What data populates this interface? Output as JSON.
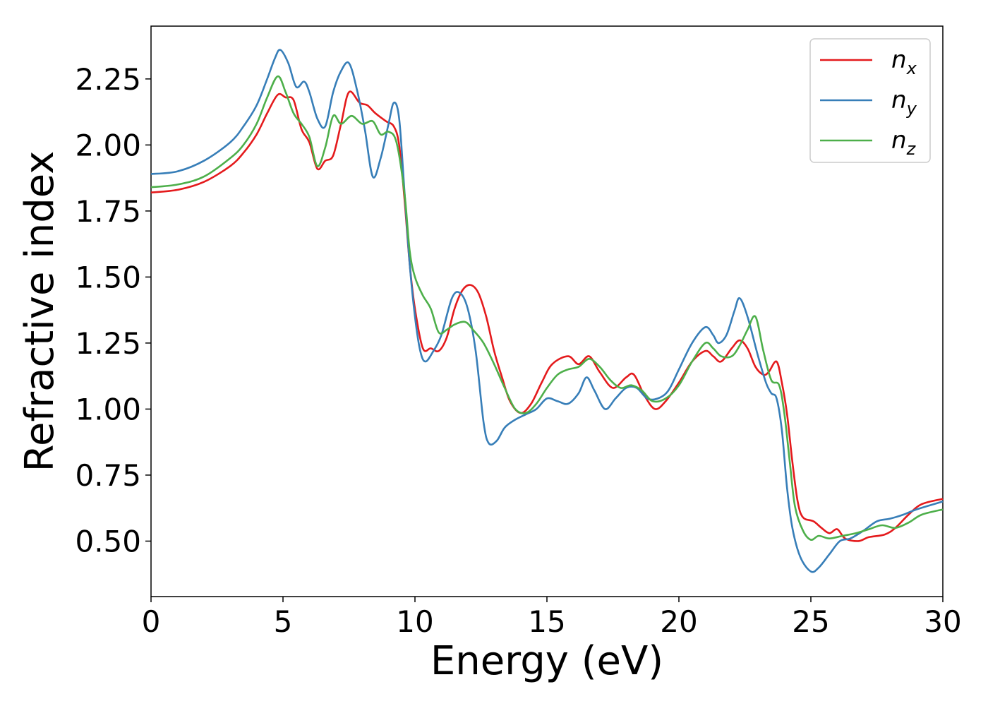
{
  "chart_data": {
    "type": "line",
    "title": "",
    "xlabel": "Energy (eV)",
    "ylabel": "Refractive index",
    "xlim": [
      0,
      30
    ],
    "ylim": [
      0.29,
      2.45
    ],
    "xticks": [
      0,
      5,
      10,
      15,
      20,
      25,
      30
    ],
    "yticks": [
      0.5,
      0.75,
      1.0,
      1.25,
      1.5,
      1.75,
      2.0,
      2.25
    ],
    "xtick_labels": [
      "0",
      "5",
      "10",
      "15",
      "20",
      "25",
      "30"
    ],
    "ytick_labels": [
      "0.50",
      "0.75",
      "1.00",
      "1.25",
      "1.50",
      "1.75",
      "2.00",
      "2.25"
    ],
    "grid": false,
    "legend_position": "top-right",
    "series": [
      {
        "name": "n",
        "subscript": "x",
        "color": "#e41a1c",
        "points": [
          [
            0,
            1.82
          ],
          [
            1,
            1.83
          ],
          [
            2,
            1.86
          ],
          [
            3,
            1.92
          ],
          [
            3.5,
            1.97
          ],
          [
            4,
            2.04
          ],
          [
            4.4,
            2.12
          ],
          [
            4.8,
            2.19
          ],
          [
            5.1,
            2.18
          ],
          [
            5.4,
            2.17
          ],
          [
            5.7,
            2.06
          ],
          [
            6.0,
            2.01
          ],
          [
            6.3,
            1.91
          ],
          [
            6.6,
            1.94
          ],
          [
            6.9,
            1.96
          ],
          [
            7.2,
            2.08
          ],
          [
            7.5,
            2.2
          ],
          [
            7.9,
            2.16
          ],
          [
            8.2,
            2.15
          ],
          [
            8.5,
            2.12
          ],
          [
            8.9,
            2.09
          ],
          [
            9.2,
            2.07
          ],
          [
            9.4,
            2.0
          ],
          [
            9.6,
            1.8
          ],
          [
            9.8,
            1.55
          ],
          [
            10.0,
            1.38
          ],
          [
            10.3,
            1.23
          ],
          [
            10.6,
            1.23
          ],
          [
            10.9,
            1.22
          ],
          [
            11.2,
            1.27
          ],
          [
            11.5,
            1.38
          ],
          [
            11.8,
            1.45
          ],
          [
            12.1,
            1.47
          ],
          [
            12.4,
            1.44
          ],
          [
            12.7,
            1.35
          ],
          [
            13.0,
            1.22
          ],
          [
            13.3,
            1.12
          ],
          [
            13.6,
            1.03
          ],
          [
            14.0,
            0.985
          ],
          [
            14.4,
            1.02
          ],
          [
            14.8,
            1.1
          ],
          [
            15.2,
            1.17
          ],
          [
            15.8,
            1.2
          ],
          [
            16.2,
            1.17
          ],
          [
            16.6,
            1.2
          ],
          [
            17.0,
            1.14
          ],
          [
            17.5,
            1.08
          ],
          [
            18.0,
            1.12
          ],
          [
            18.3,
            1.13
          ],
          [
            18.7,
            1.05
          ],
          [
            19.1,
            1.0
          ],
          [
            19.5,
            1.03
          ],
          [
            20.0,
            1.1
          ],
          [
            20.5,
            1.18
          ],
          [
            21.0,
            1.22
          ],
          [
            21.3,
            1.2
          ],
          [
            21.6,
            1.18
          ],
          [
            22.0,
            1.23
          ],
          [
            22.3,
            1.26
          ],
          [
            22.6,
            1.23
          ],
          [
            22.9,
            1.16
          ],
          [
            23.2,
            1.13
          ],
          [
            23.4,
            1.14
          ],
          [
            23.7,
            1.18
          ],
          [
            23.9,
            1.1
          ],
          [
            24.1,
            0.98
          ],
          [
            24.3,
            0.8
          ],
          [
            24.5,
            0.65
          ],
          [
            24.7,
            0.59
          ],
          [
            25.1,
            0.575
          ],
          [
            25.4,
            0.55
          ],
          [
            25.7,
            0.53
          ],
          [
            26.0,
            0.545
          ],
          [
            26.3,
            0.51
          ],
          [
            26.8,
            0.5
          ],
          [
            27.2,
            0.515
          ],
          [
            27.8,
            0.525
          ],
          [
            28.2,
            0.55
          ],
          [
            28.7,
            0.6
          ],
          [
            29.2,
            0.64
          ],
          [
            30,
            0.66
          ]
        ]
      },
      {
        "name": "n",
        "subscript": "y",
        "color": "#377eb8",
        "points": [
          [
            0,
            1.89
          ],
          [
            1,
            1.9
          ],
          [
            2,
            1.94
          ],
          [
            3,
            2.01
          ],
          [
            3.5,
            2.07
          ],
          [
            4,
            2.15
          ],
          [
            4.4,
            2.25
          ],
          [
            4.7,
            2.33
          ],
          [
            4.9,
            2.36
          ],
          [
            5.2,
            2.31
          ],
          [
            5.5,
            2.22
          ],
          [
            5.8,
            2.24
          ],
          [
            6.0,
            2.2
          ],
          [
            6.3,
            2.1
          ],
          [
            6.6,
            2.07
          ],
          [
            6.9,
            2.2
          ],
          [
            7.2,
            2.28
          ],
          [
            7.5,
            2.31
          ],
          [
            7.8,
            2.21
          ],
          [
            8.1,
            2.06
          ],
          [
            8.4,
            1.88
          ],
          [
            8.7,
            1.95
          ],
          [
            9.0,
            2.08
          ],
          [
            9.2,
            2.16
          ],
          [
            9.4,
            2.1
          ],
          [
            9.6,
            1.83
          ],
          [
            9.8,
            1.55
          ],
          [
            10.0,
            1.35
          ],
          [
            10.2,
            1.22
          ],
          [
            10.4,
            1.18
          ],
          [
            10.7,
            1.22
          ],
          [
            11.0,
            1.28
          ],
          [
            11.4,
            1.42
          ],
          [
            11.7,
            1.44
          ],
          [
            12.0,
            1.38
          ],
          [
            12.3,
            1.22
          ],
          [
            12.6,
            0.95
          ],
          [
            12.8,
            0.87
          ],
          [
            13.1,
            0.88
          ],
          [
            13.4,
            0.93
          ],
          [
            13.8,
            0.96
          ],
          [
            14.2,
            0.98
          ],
          [
            14.6,
            1.0
          ],
          [
            15.0,
            1.04
          ],
          [
            15.4,
            1.03
          ],
          [
            15.8,
            1.02
          ],
          [
            16.2,
            1.06
          ],
          [
            16.5,
            1.12
          ],
          [
            16.8,
            1.07
          ],
          [
            17.2,
            1.0
          ],
          [
            17.6,
            1.04
          ],
          [
            18.0,
            1.08
          ],
          [
            18.4,
            1.08
          ],
          [
            18.8,
            1.04
          ],
          [
            19.2,
            1.04
          ],
          [
            19.6,
            1.07
          ],
          [
            20.0,
            1.15
          ],
          [
            20.5,
            1.25
          ],
          [
            21.0,
            1.31
          ],
          [
            21.3,
            1.28
          ],
          [
            21.5,
            1.25
          ],
          [
            21.8,
            1.28
          ],
          [
            22.1,
            1.37
          ],
          [
            22.3,
            1.42
          ],
          [
            22.6,
            1.35
          ],
          [
            23.0,
            1.2
          ],
          [
            23.3,
            1.1
          ],
          [
            23.5,
            1.06
          ],
          [
            23.7,
            1.04
          ],
          [
            23.9,
            0.92
          ],
          [
            24.1,
            0.7
          ],
          [
            24.3,
            0.55
          ],
          [
            24.6,
            0.44
          ],
          [
            25.0,
            0.385
          ],
          [
            25.3,
            0.4
          ],
          [
            25.7,
            0.45
          ],
          [
            26.1,
            0.5
          ],
          [
            26.5,
            0.51
          ],
          [
            27.0,
            0.54
          ],
          [
            27.5,
            0.575
          ],
          [
            28.0,
            0.585
          ],
          [
            28.5,
            0.6
          ],
          [
            29.0,
            0.62
          ],
          [
            30,
            0.65
          ]
        ]
      },
      {
        "name": "n",
        "subscript": "z",
        "color": "#4daf4a",
        "points": [
          [
            0,
            1.84
          ],
          [
            1,
            1.85
          ],
          [
            2,
            1.88
          ],
          [
            3,
            1.95
          ],
          [
            3.5,
            2.0
          ],
          [
            4,
            2.08
          ],
          [
            4.4,
            2.18
          ],
          [
            4.8,
            2.26
          ],
          [
            5.1,
            2.2
          ],
          [
            5.4,
            2.12
          ],
          [
            5.7,
            2.08
          ],
          [
            6.0,
            2.03
          ],
          [
            6.3,
            1.92
          ],
          [
            6.6,
            1.99
          ],
          [
            6.9,
            2.11
          ],
          [
            7.2,
            2.08
          ],
          [
            7.6,
            2.11
          ],
          [
            8.0,
            2.08
          ],
          [
            8.4,
            2.09
          ],
          [
            8.7,
            2.04
          ],
          [
            9.0,
            2.05
          ],
          [
            9.3,
            2.01
          ],
          [
            9.6,
            1.82
          ],
          [
            9.8,
            1.6
          ],
          [
            10.0,
            1.5
          ],
          [
            10.3,
            1.43
          ],
          [
            10.6,
            1.38
          ],
          [
            10.9,
            1.29
          ],
          [
            11.2,
            1.3
          ],
          [
            11.5,
            1.32
          ],
          [
            11.9,
            1.33
          ],
          [
            12.2,
            1.3
          ],
          [
            12.6,
            1.25
          ],
          [
            13.0,
            1.17
          ],
          [
            13.4,
            1.08
          ],
          [
            13.8,
            1.0
          ],
          [
            14.2,
            0.985
          ],
          [
            14.6,
            1.02
          ],
          [
            15.0,
            1.08
          ],
          [
            15.4,
            1.13
          ],
          [
            15.8,
            1.15
          ],
          [
            16.2,
            1.16
          ],
          [
            16.6,
            1.19
          ],
          [
            17.0,
            1.16
          ],
          [
            17.4,
            1.11
          ],
          [
            17.8,
            1.08
          ],
          [
            18.2,
            1.09
          ],
          [
            18.6,
            1.07
          ],
          [
            19.0,
            1.03
          ],
          [
            19.5,
            1.04
          ],
          [
            20.0,
            1.09
          ],
          [
            20.5,
            1.18
          ],
          [
            21.0,
            1.25
          ],
          [
            21.3,
            1.23
          ],
          [
            21.6,
            1.2
          ],
          [
            22.0,
            1.2
          ],
          [
            22.3,
            1.24
          ],
          [
            22.6,
            1.3
          ],
          [
            22.9,
            1.35
          ],
          [
            23.2,
            1.22
          ],
          [
            23.5,
            1.11
          ],
          [
            23.8,
            1.09
          ],
          [
            24.0,
            0.98
          ],
          [
            24.2,
            0.8
          ],
          [
            24.4,
            0.63
          ],
          [
            24.7,
            0.54
          ],
          [
            25.0,
            0.505
          ],
          [
            25.3,
            0.52
          ],
          [
            25.7,
            0.51
          ],
          [
            26.2,
            0.52
          ],
          [
            26.7,
            0.53
          ],
          [
            27.2,
            0.545
          ],
          [
            27.7,
            0.56
          ],
          [
            28.2,
            0.55
          ],
          [
            28.7,
            0.57
          ],
          [
            29.2,
            0.6
          ],
          [
            30,
            0.62
          ]
        ]
      }
    ]
  }
}
